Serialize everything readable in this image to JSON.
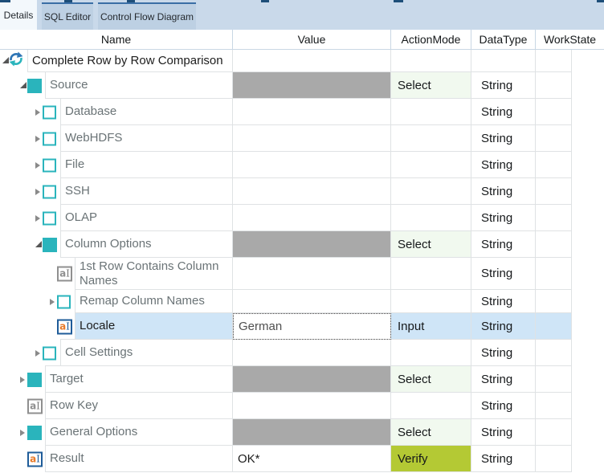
{
  "tabs": [
    {
      "label": "Details",
      "active": true
    },
    {
      "label": "SQL Editor",
      "active": false
    },
    {
      "label": "Control Flow Diagram",
      "active": false
    }
  ],
  "header": {
    "columns": [
      "Name",
      "Value",
      "ActionMode",
      "DataType",
      "WorkState"
    ]
  },
  "rows": [
    {
      "name": "Complete Row by Row Comparison",
      "depth": 0,
      "icon": "refresh-icon",
      "expander": "expanded",
      "value": "",
      "value_style": "empty",
      "action": "",
      "action_style": "none",
      "datatype": "",
      "selected": false,
      "emphasis": true
    },
    {
      "name": "Source",
      "depth": 1,
      "icon": "folder-filled-icon",
      "expander": "expanded",
      "value": "",
      "value_style": "bar",
      "action": "Select",
      "action_style": "select",
      "datatype": "String",
      "selected": false,
      "emphasis": false
    },
    {
      "name": "Database",
      "depth": 2,
      "icon": "folder-outline-icon",
      "expander": "collapsed",
      "value": "",
      "value_style": "empty",
      "action": "",
      "action_style": "none",
      "datatype": "String",
      "selected": false,
      "emphasis": false
    },
    {
      "name": "WebHDFS",
      "depth": 2,
      "icon": "folder-outline-icon",
      "expander": "collapsed",
      "value": "",
      "value_style": "empty",
      "action": "",
      "action_style": "none",
      "datatype": "String",
      "selected": false,
      "emphasis": false
    },
    {
      "name": "File",
      "depth": 2,
      "icon": "folder-outline-icon",
      "expander": "collapsed",
      "value": "",
      "value_style": "empty",
      "action": "",
      "action_style": "none",
      "datatype": "String",
      "selected": false,
      "emphasis": false
    },
    {
      "name": "SSH",
      "depth": 2,
      "icon": "folder-outline-icon",
      "expander": "collapsed",
      "value": "",
      "value_style": "empty",
      "action": "",
      "action_style": "none",
      "datatype": "String",
      "selected": false,
      "emphasis": false
    },
    {
      "name": "OLAP",
      "depth": 2,
      "icon": "folder-outline-icon",
      "expander": "collapsed",
      "value": "",
      "value_style": "empty",
      "action": "",
      "action_style": "none",
      "datatype": "String",
      "selected": false,
      "emphasis": false
    },
    {
      "name": "Column Options",
      "depth": 2,
      "icon": "folder-filled-icon",
      "expander": "expanded",
      "value": "",
      "value_style": "bar",
      "action": "Select",
      "action_style": "select",
      "datatype": "String",
      "selected": false,
      "emphasis": false
    },
    {
      "name": "1st Row Contains Column Names",
      "depth": 3,
      "icon": "value-gray-icon",
      "expander": null,
      "value": "",
      "value_style": "empty",
      "action": "",
      "action_style": "none",
      "datatype": "String",
      "selected": false,
      "emphasis": false
    },
    {
      "name": "Remap Column Names",
      "depth": 3,
      "icon": "folder-outline-icon",
      "expander": "collapsed",
      "value": "",
      "value_style": "empty",
      "action": "",
      "action_style": "none",
      "datatype": "String",
      "selected": false,
      "emphasis": false
    },
    {
      "name": "Locale",
      "depth": 3,
      "icon": "value-colored-icon",
      "expander": null,
      "value": "German",
      "value_style": "editbox",
      "action": "Input",
      "action_style": "input",
      "datatype": "String",
      "selected": true,
      "emphasis": true
    },
    {
      "name": "Cell Settings",
      "depth": 2,
      "icon": "folder-outline-icon",
      "expander": "collapsed",
      "value": "",
      "value_style": "empty",
      "action": "",
      "action_style": "none",
      "datatype": "String",
      "selected": false,
      "emphasis": false
    },
    {
      "name": "Target",
      "depth": 1,
      "icon": "folder-filled-icon",
      "expander": "collapsed",
      "value": "",
      "value_style": "bar",
      "action": "Select",
      "action_style": "select",
      "datatype": "String",
      "selected": false,
      "emphasis": false
    },
    {
      "name": "Row Key",
      "depth": 1,
      "icon": "value-gray-icon",
      "expander": null,
      "value": "",
      "value_style": "empty",
      "action": "",
      "action_style": "none",
      "datatype": "String",
      "selected": false,
      "emphasis": false
    },
    {
      "name": "General Options",
      "depth": 1,
      "icon": "folder-filled-icon",
      "expander": "collapsed",
      "value": "",
      "value_style": "bar",
      "action": "Select",
      "action_style": "select",
      "datatype": "String",
      "selected": false,
      "emphasis": false
    },
    {
      "name": "Result",
      "depth": 1,
      "icon": "value-colored-icon",
      "expander": null,
      "value": "OK*",
      "value_style": "text",
      "action": "Verify",
      "action_style": "verify",
      "datatype": "String",
      "selected": false,
      "emphasis": false
    }
  ],
  "colors": {
    "teal_square": "#2ab4bc",
    "refresh_blue": "#2e75b6",
    "icon_border_blue": "#1f5c99",
    "icon_orange": "#e87a29",
    "selected_row": "#cfe5f7",
    "action_select_bg": "#f1f9ef",
    "action_verify_bg": "#b4c934",
    "value_bar_gray": "#a9a9a9",
    "tab_strip_bg": "#c9d9ea",
    "inactive_tab_bg": "#bdd0e3",
    "inactive_tab_top": "#3a6ea5",
    "window_dash_navy": "#1d4e79",
    "grid_line": "#dfe2e4",
    "header_line": "#c9d7e4",
    "name_text_gray": "#6a7376"
  }
}
